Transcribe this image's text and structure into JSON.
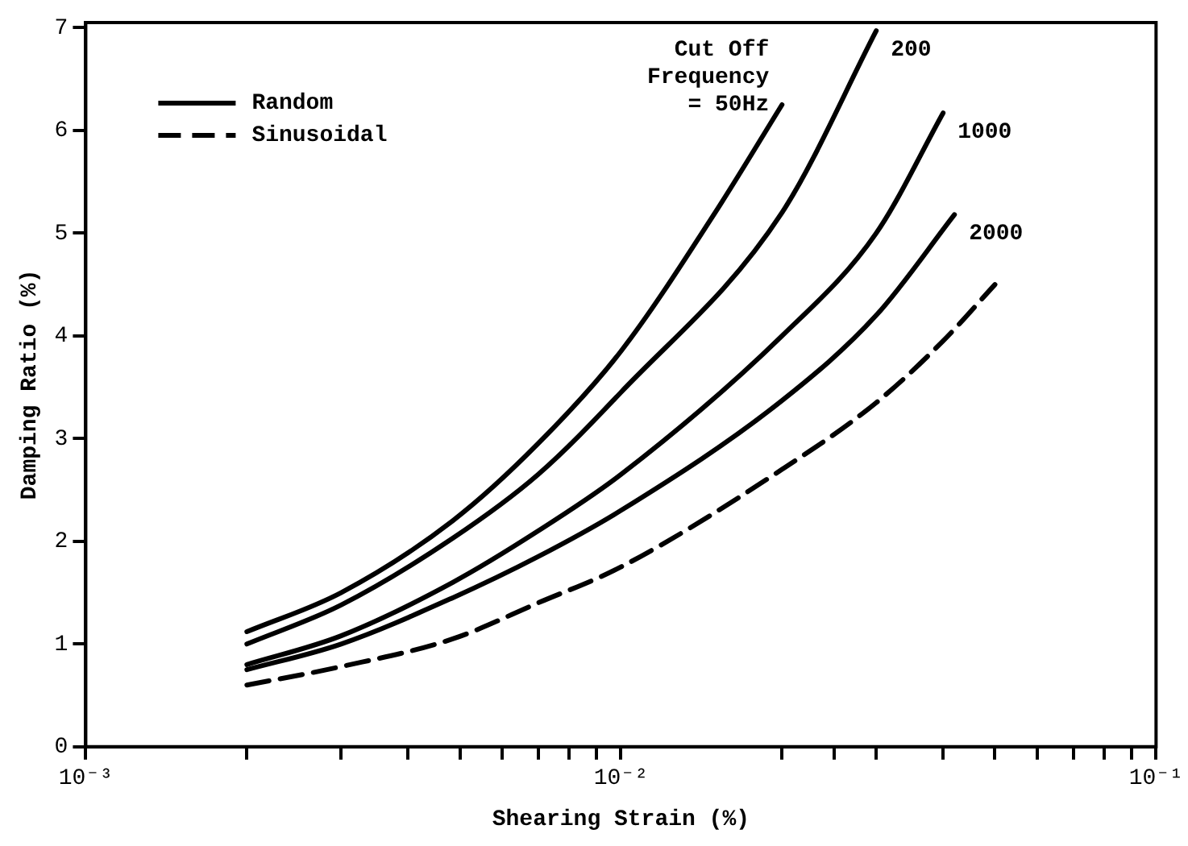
{
  "chart_data": {
    "type": "line",
    "xlabel": "Shearing Strain (%)",
    "ylabel": "Damping Ratio (%)",
    "log": "x",
    "xlim": [
      0.001,
      0.1
    ],
    "ylim": [
      0,
      7.05
    ],
    "xticks": [
      {
        "value": 0.001,
        "label": "10⁻³"
      },
      {
        "value": 0.002,
        "label": null
      },
      {
        "value": 0.003,
        "label": null
      },
      {
        "value": 0.004,
        "label": null
      },
      {
        "value": 0.005,
        "label": null
      },
      {
        "value": 0.006,
        "label": null
      },
      {
        "value": 0.007,
        "label": null
      },
      {
        "value": 0.008,
        "label": null
      },
      {
        "value": 0.009,
        "label": null
      },
      {
        "value": 0.01,
        "label": "10⁻²"
      },
      {
        "value": 0.02,
        "label": null
      },
      {
        "value": 0.025,
        "label": null
      },
      {
        "value": 0.03,
        "label": null
      },
      {
        "value": 0.04,
        "label": null
      },
      {
        "value": 0.05,
        "label": null
      },
      {
        "value": 0.06,
        "label": null
      },
      {
        "value": 0.07,
        "label": null
      },
      {
        "value": 0.08,
        "label": null
      },
      {
        "value": 0.09,
        "label": null
      },
      {
        "value": 0.1,
        "label": "10⁻¹"
      }
    ],
    "yticks": [
      0,
      1,
      2,
      3,
      4,
      5,
      6,
      7
    ],
    "grid": false,
    "legend": "top left",
    "marker": "none",
    "series": [
      {
        "name": "Random",
        "color": "#000000",
        "line_style": "solid",
        "x": [
          0.002,
          0.003,
          0.00485,
          0.007,
          0.01,
          0.015,
          0.02
        ],
        "values": [
          1.12,
          1.5,
          2.2,
          2.95,
          3.85,
          5.2,
          6.25
        ]
      },
      {
        "color": "#000000",
        "line_style": "solid",
        "x": [
          0.002,
          0.003,
          0.00485,
          0.007,
          0.01,
          0.02,
          0.03
        ],
        "values": [
          1.0,
          1.38,
          2.03,
          2.65,
          3.45,
          5.2,
          6.97
        ]
      },
      {
        "color": "#000000",
        "line_style": "solid",
        "x": [
          0.002,
          0.003,
          0.00485,
          0.007,
          0.01,
          0.02,
          0.03,
          0.04
        ],
        "values": [
          0.8,
          1.08,
          1.6,
          2.1,
          2.65,
          4.0,
          5.0,
          6.17
        ]
      },
      {
        "color": "#000000",
        "line_style": "solid",
        "x": [
          0.002,
          0.003,
          0.00485,
          0.007,
          0.01,
          0.02,
          0.03,
          0.042
        ],
        "values": [
          0.75,
          1.0,
          1.45,
          1.85,
          2.3,
          3.37,
          4.2,
          5.18
        ]
      },
      {
        "name": "Sinusoidal",
        "color": "#000000",
        "line_style": "dashed",
        "x": [
          0.002,
          0.003,
          0.00485,
          0.007,
          0.01,
          0.02,
          0.03,
          0.04,
          0.05
        ],
        "values": [
          0.6,
          0.78,
          1.05,
          1.4,
          1.75,
          2.7,
          3.35,
          3.95,
          4.5
        ]
      }
    ],
    "annotations": [
      {
        "text": "Cut Off\nFrequency\n= 50Hz",
        "x": 0.02,
        "y": 6.25
      },
      {
        "text": "200",
        "x": 0.03,
        "y": 6.97
      },
      {
        "text": "1000",
        "x": 0.04,
        "y": 6.17
      },
      {
        "text": "2000",
        "x": 0.042,
        "y": 5.18
      }
    ]
  }
}
